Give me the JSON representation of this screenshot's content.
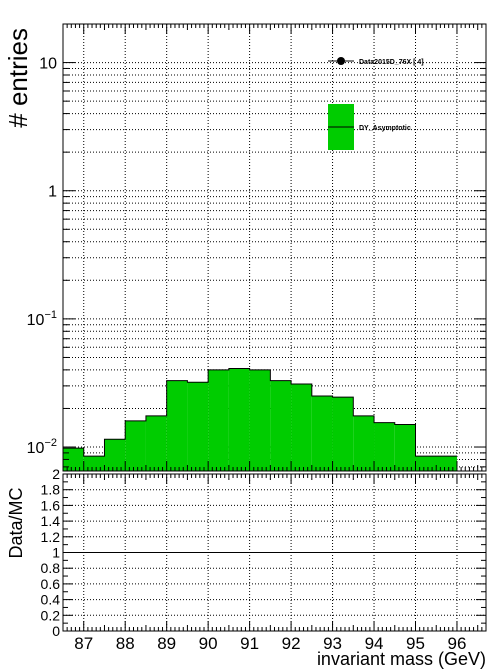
{
  "chart_data": [
    {
      "type": "histogram",
      "xlabel": "invariant mass (GeV)",
      "ylabel": "# entries",
      "xlim": [
        86.5,
        96.7
      ],
      "ylim": [
        0.0065,
        20
      ],
      "yscale": "log",
      "grid": true,
      "bin_edges": [
        86.5,
        87.0,
        87.5,
        88.0,
        88.5,
        89.0,
        89.5,
        90.0,
        90.5,
        91.0,
        91.5,
        92.0,
        92.5,
        93.0,
        93.5,
        94.0,
        94.5,
        95.0,
        96.0
      ],
      "series": [
        {
          "name": "DY_Asymptotic",
          "color": "#00cc00",
          "values": [
            0.0098,
            0.0085,
            0.0115,
            0.016,
            0.0175,
            0.033,
            0.032,
            0.04,
            0.041,
            0.04,
            0.033,
            0.031,
            0.025,
            0.0245,
            0.0175,
            0.0155,
            0.015,
            0.0085
          ]
        }
      ],
      "legend": {
        "position": "top-right",
        "entries": [
          {
            "label": "Data2015D_76X [       4]",
            "marker": "point"
          },
          {
            "label": "DY_Asymptotic",
            "marker": "fill",
            "color": "#00cc00"
          }
        ]
      },
      "y_ticks": [
        {
          "value": 0.01,
          "base": "10",
          "exp": "−2"
        },
        {
          "value": 0.1,
          "base": "10",
          "exp": "−1"
        },
        {
          "value": 1,
          "base": "1",
          "exp": ""
        },
        {
          "value": 10,
          "base": "10",
          "exp": ""
        }
      ]
    },
    {
      "type": "line",
      "xlabel": "invariant mass (GeV)",
      "ylabel": "Data/MC",
      "xlim": [
        86.5,
        96.7
      ],
      "ylim": [
        0,
        2
      ],
      "grid": true,
      "reference_line": 1,
      "y_tick_labels": [
        "0",
        "0.2",
        "0.4",
        "0.6",
        "0.8",
        "1",
        "1.2",
        "1.4",
        "1.6",
        "1.8",
        "2"
      ],
      "x_tick_labels": [
        "87",
        "88",
        "89",
        "90",
        "91",
        "92",
        "93",
        "94",
        "95",
        "96"
      ]
    }
  ]
}
